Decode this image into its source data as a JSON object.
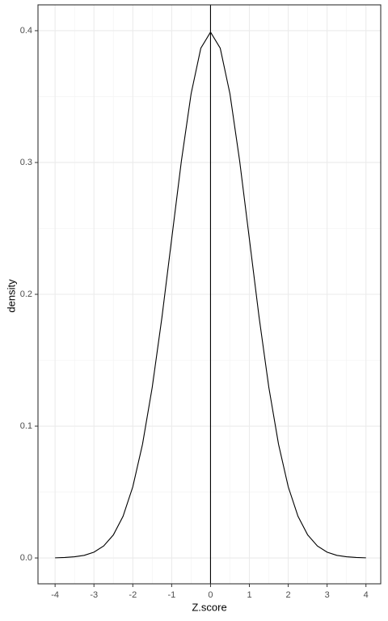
{
  "chart_data": {
    "type": "line",
    "xlabel": "Z.score",
    "ylabel": "density",
    "x": [
      -4,
      -3.75,
      -3.5,
      -3.25,
      -3,
      -2.75,
      -2.5,
      -2.25,
      -2,
      -1.75,
      -1.5,
      -1.25,
      -1,
      -0.75,
      -0.5,
      -0.25,
      0,
      0.25,
      0.5,
      0.75,
      1,
      1.25,
      1.5,
      1.75,
      2,
      2.25,
      2.5,
      2.75,
      3,
      3.25,
      3.5,
      3.75,
      4
    ],
    "series": [
      {
        "color": "#000000",
        "values": [
          0.0001,
          0.0004,
          0.0009,
          0.002,
          0.0044,
          0.0091,
          0.0175,
          0.0317,
          0.054,
          0.0863,
          0.1295,
          0.1826,
          0.242,
          0.3011,
          0.3521,
          0.3867,
          0.3989,
          0.3867,
          0.3521,
          0.3011,
          0.242,
          0.1826,
          0.1295,
          0.0863,
          0.054,
          0.0317,
          0.0175,
          0.0091,
          0.0044,
          0.002,
          0.0009,
          0.0004,
          0.0001
        ]
      }
    ],
    "vline": 0,
    "xlim": [
      -4.44,
      4.38
    ],
    "ylim": [
      -0.0196,
      0.4196
    ],
    "xticks": [
      -4,
      -3,
      -2,
      -1,
      0,
      1,
      2,
      3,
      4
    ],
    "yticks": [
      {
        "value": 0,
        "label": "0.0"
      },
      0.1,
      0.2,
      0.3,
      0.4
    ],
    "grid": true,
    "minor_grid": true
  }
}
